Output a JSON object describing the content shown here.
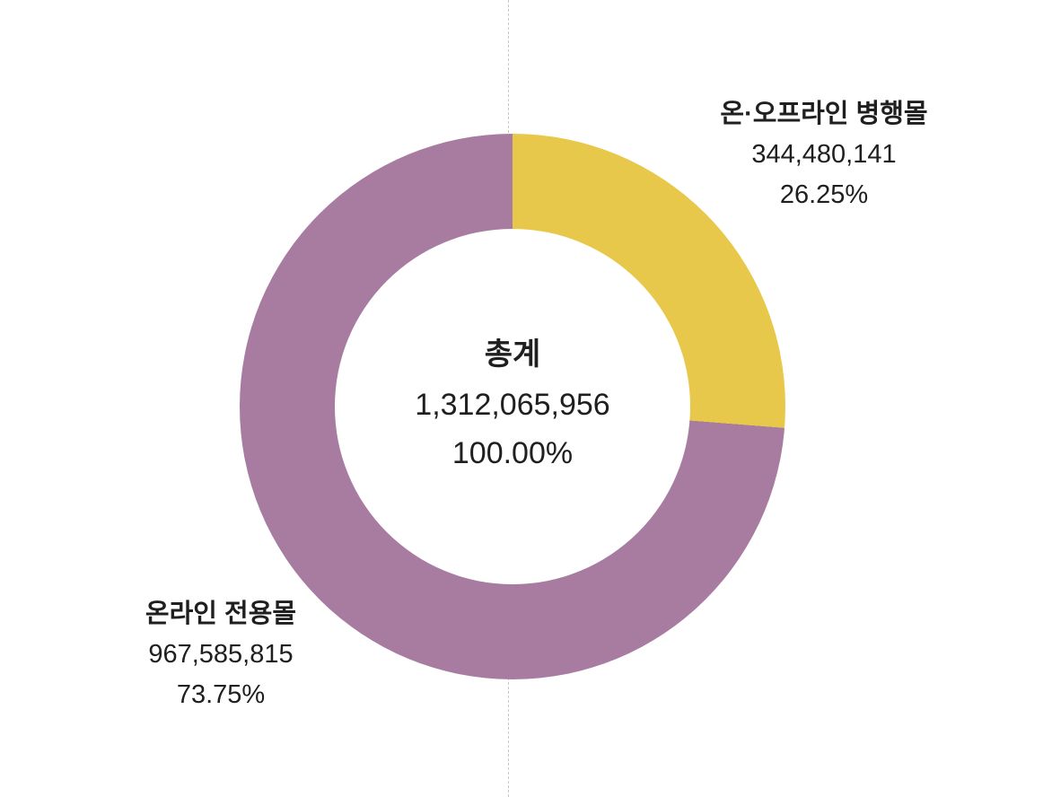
{
  "chart_data": {
    "type": "pie",
    "subtype": "donut",
    "title": "",
    "categories": [
      "온·오프라인 병행몰",
      "온라인 전용몰"
    ],
    "values": [
      344480141,
      967585815
    ],
    "percents": [
      26.25,
      73.75
    ],
    "total": {
      "label": "총계",
      "value": 1312065956,
      "value_label": "1,312,065,956",
      "percent_label": "100.00%"
    },
    "slices": [
      {
        "name": "온·오프라인 병행몰",
        "value": 344480141,
        "value_label": "344,480,141",
        "percent": 26.25,
        "percent_label": "26.25%",
        "color": "#E8C84B"
      },
      {
        "name": "온라인 전용몰",
        "value": 967585815,
        "value_label": "967,585,815",
        "percent": 73.75,
        "percent_label": "73.75%",
        "color": "#A87CA1"
      }
    ],
    "start_angle_deg": 0,
    "direction": "clockwise",
    "legend_position": "none",
    "labels_outside": true,
    "guide_line_color": "#c9c9c9",
    "background_color": "#ffffff"
  }
}
